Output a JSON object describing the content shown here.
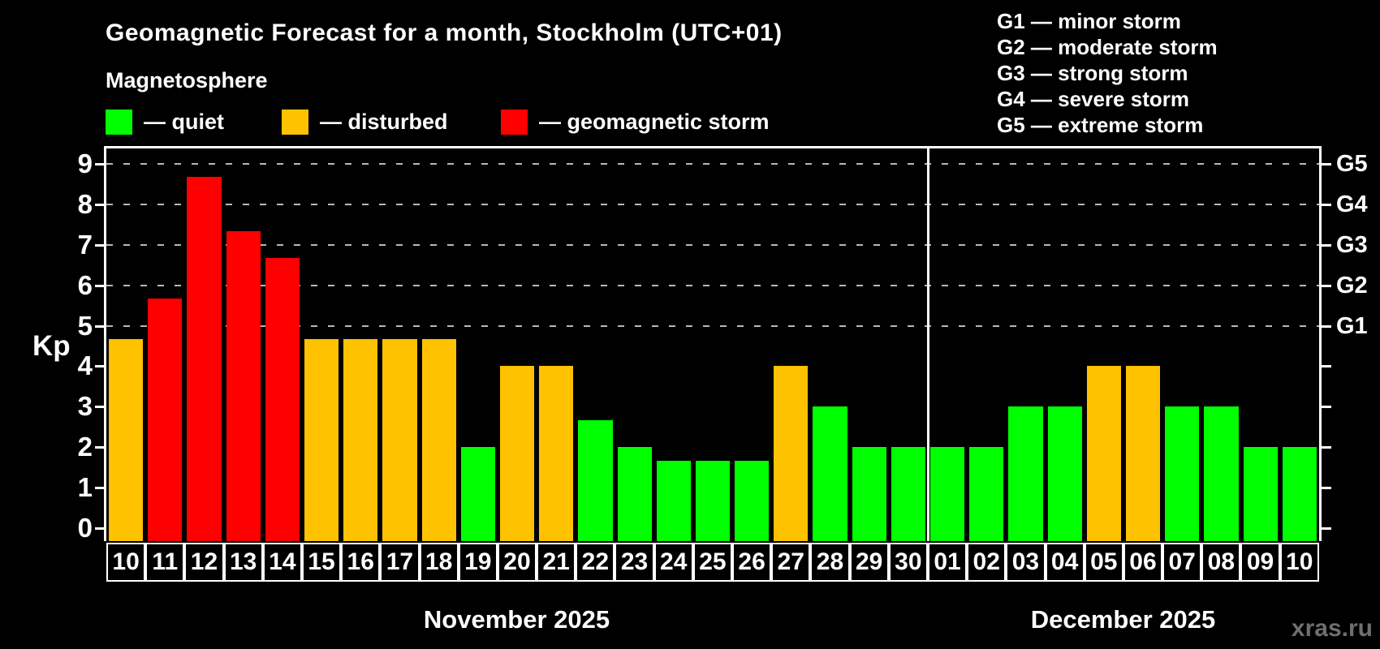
{
  "header": {
    "title": "Geomagnetic Forecast for a month, Stockholm (UTC+01)",
    "subtitle": "Magnetosphere"
  },
  "legend": {
    "items": [
      {
        "status": "quiet",
        "label": "— quiet",
        "color": "#00ff00"
      },
      {
        "status": "disturbed",
        "label": "— disturbed",
        "color": "#ffc200"
      },
      {
        "status": "storm",
        "label": "— geomagnetic storm",
        "color": "#ff0000"
      }
    ]
  },
  "g_scale_legend": {
    "items": [
      "G1 — minor storm",
      "G2 — moderate storm",
      "G3 — strong storm",
      "G4 — severe storm",
      "G5 — extreme storm"
    ]
  },
  "watermark": "xras.ru",
  "colors": {
    "quiet": "#00ff00",
    "disturbed": "#ffc200",
    "storm": "#ff0000",
    "background": "#000000",
    "gridline": "#b8b8b8",
    "watermark": "#6f6f6f"
  },
  "chart_data": {
    "type": "bar",
    "title": "Geomagnetic Forecast for a month, Stockholm (UTC+01)",
    "ylabel": "Kp",
    "ylim": [
      0,
      9
    ],
    "y_ticks": [
      0,
      1,
      2,
      3,
      4,
      5,
      6,
      7,
      8,
      9
    ],
    "dashed_gridlines_kp": [
      5,
      6,
      7,
      8,
      9
    ],
    "legend_position": "top",
    "right_axis": [
      {
        "kp": 5,
        "label": "G1"
      },
      {
        "kp": 6,
        "label": "G2"
      },
      {
        "kp": 7,
        "label": "G3"
      },
      {
        "kp": 8,
        "label": "G4"
      },
      {
        "kp": 9,
        "label": "G5"
      }
    ],
    "months": [
      {
        "label": "November 2025",
        "days": 21
      },
      {
        "label": "December 2025",
        "days": 10
      }
    ],
    "bars": [
      {
        "day": "10",
        "kp": 4.67,
        "status": "disturbed"
      },
      {
        "day": "11",
        "kp": 5.67,
        "status": "storm"
      },
      {
        "day": "12",
        "kp": 8.67,
        "status": "storm"
      },
      {
        "day": "13",
        "kp": 7.33,
        "status": "storm"
      },
      {
        "day": "14",
        "kp": 6.67,
        "status": "storm"
      },
      {
        "day": "15",
        "kp": 4.67,
        "status": "disturbed"
      },
      {
        "day": "16",
        "kp": 4.67,
        "status": "disturbed"
      },
      {
        "day": "17",
        "kp": 4.67,
        "status": "disturbed"
      },
      {
        "day": "18",
        "kp": 4.67,
        "status": "disturbed"
      },
      {
        "day": "19",
        "kp": 2.0,
        "status": "quiet"
      },
      {
        "day": "20",
        "kp": 4.0,
        "status": "disturbed"
      },
      {
        "day": "21",
        "kp": 4.0,
        "status": "disturbed"
      },
      {
        "day": "22",
        "kp": 2.67,
        "status": "quiet"
      },
      {
        "day": "23",
        "kp": 2.0,
        "status": "quiet"
      },
      {
        "day": "24",
        "kp": 1.67,
        "status": "quiet"
      },
      {
        "day": "25",
        "kp": 1.67,
        "status": "quiet"
      },
      {
        "day": "26",
        "kp": 1.67,
        "status": "quiet"
      },
      {
        "day": "27",
        "kp": 4.0,
        "status": "disturbed"
      },
      {
        "day": "28",
        "kp": 3.0,
        "status": "quiet"
      },
      {
        "day": "29",
        "kp": 2.0,
        "status": "quiet"
      },
      {
        "day": "30",
        "kp": 2.0,
        "status": "quiet"
      },
      {
        "day": "01",
        "kp": 2.0,
        "status": "quiet"
      },
      {
        "day": "02",
        "kp": 2.0,
        "status": "quiet"
      },
      {
        "day": "03",
        "kp": 3.0,
        "status": "quiet"
      },
      {
        "day": "04",
        "kp": 3.0,
        "status": "quiet"
      },
      {
        "day": "05",
        "kp": 4.0,
        "status": "disturbed"
      },
      {
        "day": "06",
        "kp": 4.0,
        "status": "disturbed"
      },
      {
        "day": "07",
        "kp": 3.0,
        "status": "quiet"
      },
      {
        "day": "08",
        "kp": 3.0,
        "status": "quiet"
      },
      {
        "day": "09",
        "kp": 2.0,
        "status": "quiet"
      },
      {
        "day": "10",
        "kp": 2.0,
        "status": "quiet"
      }
    ]
  }
}
